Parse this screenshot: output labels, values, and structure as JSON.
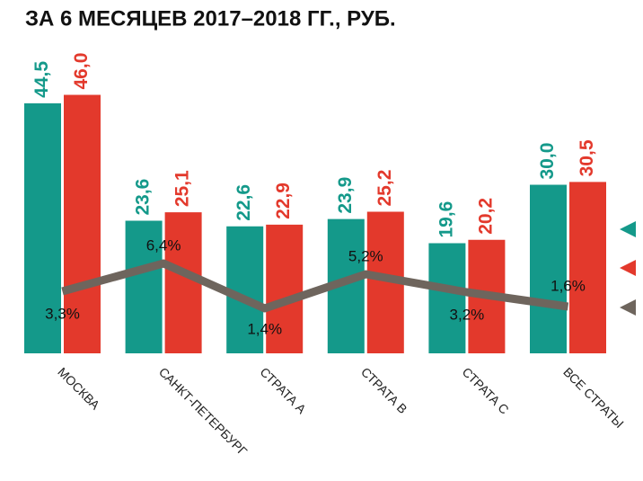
{
  "chart_data": {
    "type": "bar",
    "title": "ЗА 6 МЕСЯЦЕВ 2017–2018 ГГ., РУБ.",
    "categories": [
      "МОСКВА",
      "САНКТ-ПЕТЕРБУРГ",
      "СТРАТА А",
      "СТРАТА В",
      "СТРАТА С",
      "ВСЕ СТРАТЫ"
    ],
    "series": [
      {
        "color": "#14998a",
        "values": [
          44.5,
          23.6,
          22.6,
          23.9,
          19.6,
          30.0
        ],
        "value_labels": [
          "44,5",
          "23,6",
          "22,6",
          "23,9",
          "19,6",
          "30,0"
        ]
      },
      {
        "color": "#e3392c",
        "values": [
          46.0,
          25.1,
          22.9,
          25.2,
          20.2,
          30.5
        ],
        "value_labels": [
          "46,0",
          "25,1",
          "22,9",
          "25,2",
          "20,2",
          "30,5"
        ]
      }
    ],
    "line": {
      "type": "line",
      "color": "#6e655d",
      "values": [
        3.3,
        6.4,
        1.4,
        5.2,
        3.2,
        1.6
      ],
      "value_labels": [
        "3,3%",
        "6,4%",
        "1,4%",
        "5,2%",
        "3,2%",
        "1,6%"
      ]
    }
  }
}
